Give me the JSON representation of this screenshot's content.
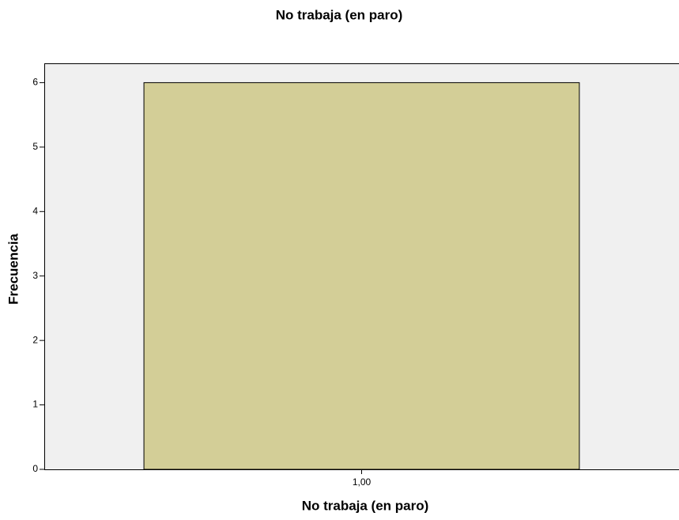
{
  "chart_data": {
    "type": "bar",
    "title": "No trabaja (en paro)",
    "x_label": "No trabaja (en paro)",
    "y_label": "Frecuencia",
    "categories": [
      "1,00"
    ],
    "values": [
      6
    ],
    "color": "#d3ce97",
    "ylim": [
      0,
      6.3
    ],
    "yticks": [
      0,
      1,
      2,
      3,
      4,
      5,
      6
    ],
    "grid": false
  }
}
